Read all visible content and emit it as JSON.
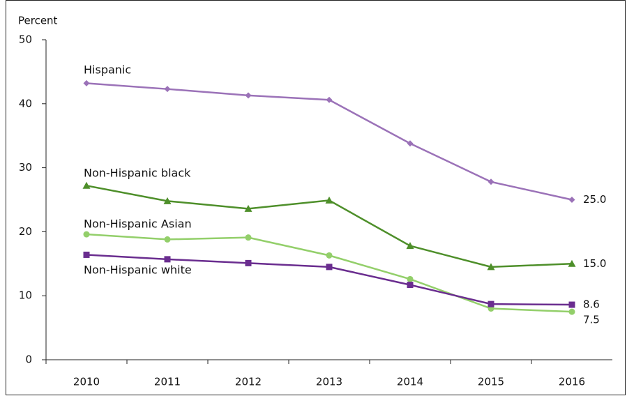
{
  "chart_data": {
    "type": "line",
    "ylabel": "Percent",
    "categories": [
      "2010",
      "2011",
      "2012",
      "2013",
      "2014",
      "2015",
      "2016"
    ],
    "series": [
      {
        "name": "Hispanic",
        "color": "#9b72b8",
        "marker": "diamond",
        "values": [
          43.2,
          42.3,
          41.3,
          40.6,
          33.8,
          27.8,
          25.0
        ],
        "value_labels": [
          null,
          null,
          null,
          null,
          null,
          null,
          "25.0"
        ]
      },
      {
        "name": "Non-Hispanic black",
        "color": "#4e8f2a",
        "marker": "triangle",
        "values": [
          27.2,
          24.8,
          23.6,
          24.9,
          17.8,
          14.5,
          15.0
        ],
        "value_labels": [
          null,
          null,
          null,
          null,
          null,
          null,
          "15.0"
        ]
      },
      {
        "name": "Non-Hispanic Asian",
        "color": "#93cf6a",
        "marker": "circle",
        "values": [
          19.6,
          18.8,
          19.1,
          16.3,
          12.6,
          8.0,
          7.5
        ],
        "value_labels": [
          null,
          null,
          null,
          null,
          null,
          null,
          "7.5"
        ]
      },
      {
        "name": "Non-Hispanic white",
        "color": "#6a2d8f",
        "marker": "square",
        "values": [
          16.4,
          15.7,
          15.1,
          14.5,
          11.7,
          8.7,
          8.6
        ],
        "value_labels": [
          null,
          null,
          null,
          null,
          null,
          null,
          "8.6"
        ]
      }
    ],
    "ylim": [
      0,
      50
    ],
    "yticks": [
      0,
      10,
      20,
      30,
      40,
      50
    ],
    "grid": false
  }
}
